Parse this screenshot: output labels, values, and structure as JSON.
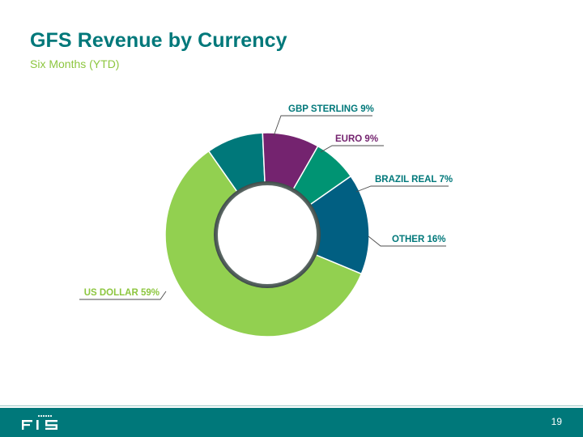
{
  "header": {
    "title": "GFS Revenue by Currency",
    "subtitle": "Six Months (YTD)"
  },
  "chart_data": {
    "type": "pie",
    "subtype": "donut",
    "title": "",
    "slices": [
      {
        "label": "GBP STERLING 9%",
        "value": 9,
        "color": "#00787A",
        "label_color": "#00787A"
      },
      {
        "label": "EURO  9%",
        "value": 9,
        "color": "#74236F",
        "label_color": "#74236F"
      },
      {
        "label": "BRAZIL REAL 7%",
        "value": 7,
        "color": "#009473",
        "label_color": "#00787A"
      },
      {
        "label": "OTHER 16%",
        "value": 16,
        "color": "#015F82",
        "label_color": "#00787A"
      },
      {
        "label": "US DOLLAR  59%",
        "value": 59,
        "color": "#92D050",
        "label_color": "#8DC63F"
      }
    ]
  },
  "footer": {
    "logo_text": "FIS",
    "page_number": "19",
    "color": "#00787A"
  }
}
